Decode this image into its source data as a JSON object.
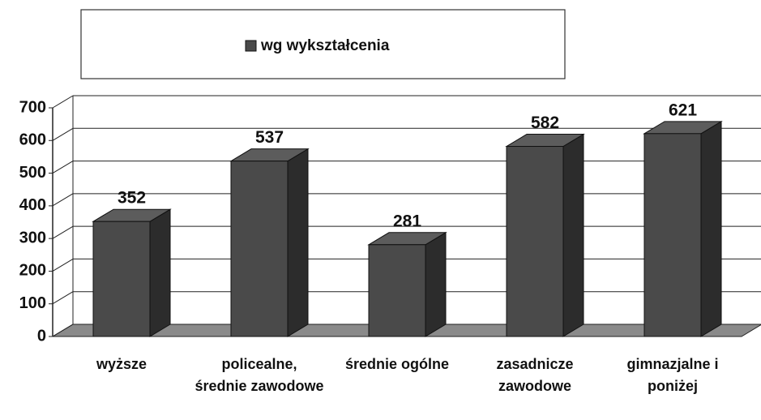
{
  "chart_data": {
    "type": "bar3d",
    "categories": [
      "wyższe",
      "policealne, średnie zawodowe",
      "średnie ogólne",
      "zasadnicze zawodowe",
      "gimnazjalne i poniżej"
    ],
    "series": [
      {
        "name": "wg wykształcenia",
        "color": "#4a4a4a",
        "values": [
          352,
          537,
          281,
          582,
          621
        ]
      }
    ],
    "ylim": [
      0,
      700
    ],
    "yticks": [
      0,
      100,
      200,
      300,
      400,
      500,
      600,
      700
    ],
    "grid": true,
    "legend": "top"
  }
}
